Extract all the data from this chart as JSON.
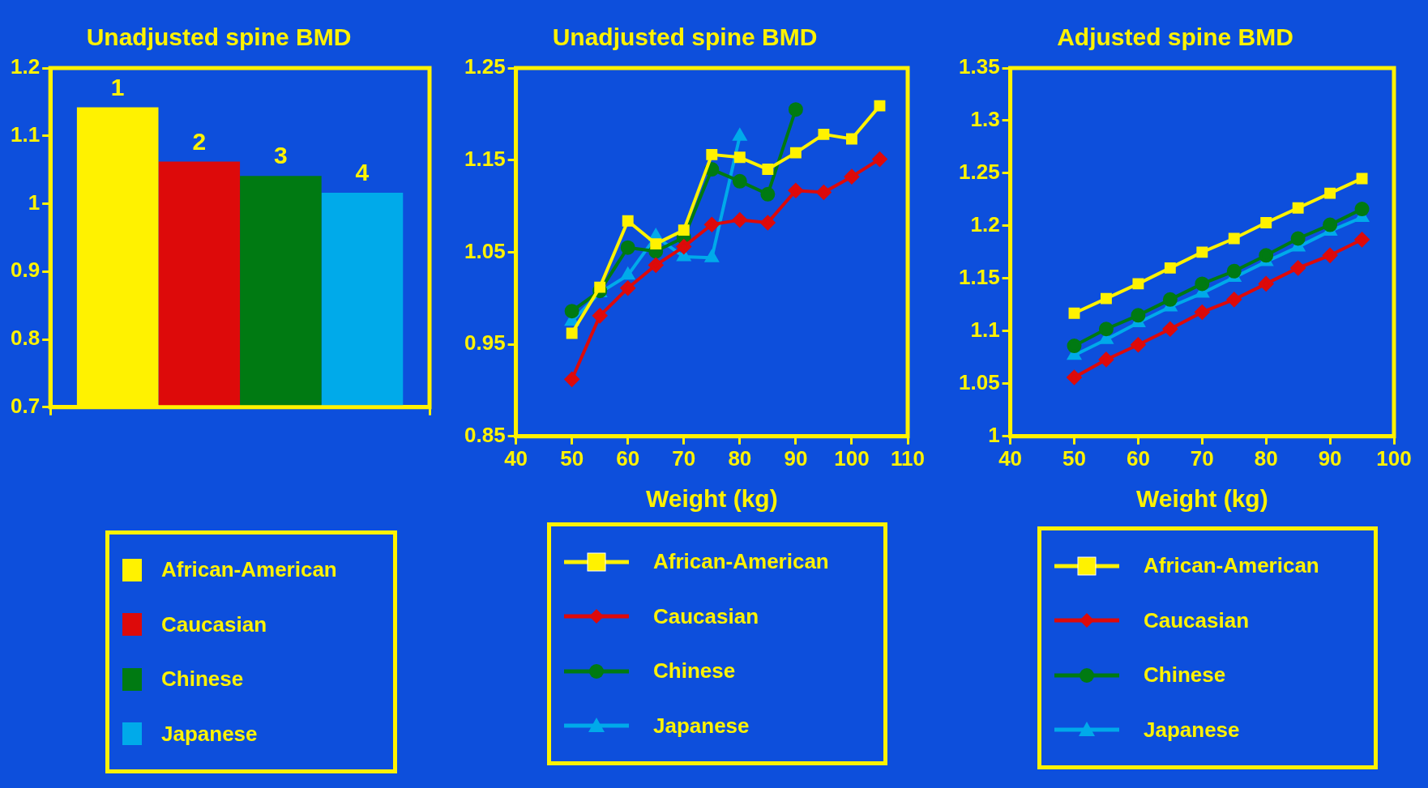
{
  "chart_data": [
    {
      "type": "bar",
      "title": "Unadjusted spine BMD",
      "categories": [
        null
      ],
      "annotations": [
        "1",
        "2",
        "3",
        "4"
      ],
      "ylim": [
        0.7,
        1.2
      ],
      "yticks": [
        0.7,
        0.8,
        0.9,
        1,
        1.1,
        1.2
      ],
      "grid": false,
      "legend": "bottom",
      "series": [
        {
          "name": "African-American",
          "color": "#fff200",
          "values": [
            1.142
          ]
        },
        {
          "name": "Caucasian",
          "color": "#dd0a0a",
          "values": [
            1.062
          ]
        },
        {
          "name": "Chinese",
          "color": "#007a12",
          "values": [
            1.041
          ]
        },
        {
          "name": "Japanese",
          "color": "#00aaea",
          "values": [
            1.016
          ]
        }
      ]
    },
    {
      "type": "line",
      "title": "Unadjusted spine BMD",
      "xlabel": "Weight (kg)",
      "xlim": [
        40,
        110
      ],
      "xticks": [
        40,
        50,
        60,
        70,
        80,
        90,
        100,
        110
      ],
      "ylim": [
        0.85,
        1.25
      ],
      "yticks": [
        0.85,
        0.95,
        1.05,
        1.15,
        1.25
      ],
      "grid": false,
      "legend": "bottom",
      "series": [
        {
          "name": "African-American",
          "color": "#fff200",
          "marker": "square",
          "x": [
            50,
            55,
            60,
            65,
            70,
            75,
            80,
            85,
            90,
            95,
            100,
            105
          ],
          "values": [
            0.962,
            1.012,
            1.084,
            1.059,
            1.074,
            1.156,
            1.153,
            1.14,
            1.158,
            1.178,
            1.173,
            1.209
          ]
        },
        {
          "name": "Caucasian",
          "color": "#dd0a0a",
          "marker": "diamond",
          "x": [
            50,
            55,
            60,
            65,
            70,
            75,
            80,
            85,
            90,
            95,
            100,
            105
          ],
          "values": [
            0.912,
            0.981,
            1.011,
            1.036,
            1.056,
            1.08,
            1.085,
            1.082,
            1.117,
            1.115,
            1.132,
            1.151
          ]
        },
        {
          "name": "Chinese",
          "color": "#007a12",
          "marker": "circle",
          "x": [
            50,
            55,
            60,
            65,
            70,
            75,
            80,
            85,
            90
          ],
          "values": [
            0.986,
            1.008,
            1.055,
            1.051,
            1.066,
            1.14,
            1.127,
            1.113,
            1.205
          ]
        },
        {
          "name": "Japanese",
          "color": "#00aaea",
          "marker": "triangle",
          "x": [
            50,
            55,
            60,
            65,
            70,
            75,
            80
          ],
          "values": [
            0.975,
            1.006,
            1.025,
            1.067,
            1.045,
            1.044,
            1.176
          ]
        }
      ]
    },
    {
      "type": "line",
      "title": "Adjusted spine BMD",
      "xlabel": "Weight (kg)",
      "xlim": [
        40,
        100
      ],
      "xticks": [
        40,
        50,
        60,
        70,
        80,
        90,
        100
      ],
      "ylim": [
        1,
        1.35
      ],
      "yticks": [
        1,
        1.05,
        1.1,
        1.15,
        1.2,
        1.25,
        1.3,
        1.35
      ],
      "grid": false,
      "legend": "bottom",
      "series": [
        {
          "name": "African-American",
          "color": "#fff200",
          "marker": "square",
          "x": [
            50,
            55,
            60,
            65,
            70,
            75,
            80,
            85,
            90,
            95
          ],
          "values": [
            1.117,
            1.131,
            1.145,
            1.16,
            1.175,
            1.188,
            1.203,
            1.217,
            1.231,
            1.245
          ]
        },
        {
          "name": "Caucasian",
          "color": "#dd0a0a",
          "marker": "diamond",
          "x": [
            50,
            55,
            60,
            65,
            70,
            75,
            80,
            85,
            90,
            95
          ],
          "values": [
            1.056,
            1.073,
            1.087,
            1.102,
            1.118,
            1.13,
            1.145,
            1.16,
            1.172,
            1.187
          ]
        },
        {
          "name": "Chinese",
          "color": "#007a12",
          "marker": "circle",
          "x": [
            50,
            55,
            60,
            65,
            70,
            75,
            80,
            85,
            90,
            95
          ],
          "values": [
            1.086,
            1.102,
            1.115,
            1.13,
            1.145,
            1.157,
            1.172,
            1.188,
            1.201,
            1.216
          ]
        },
        {
          "name": "Japanese",
          "color": "#00aaea",
          "marker": "triangle",
          "x": [
            50,
            55,
            60,
            65,
            70,
            75,
            80,
            85,
            90,
            95
          ],
          "values": [
            1.077,
            1.092,
            1.108,
            1.123,
            1.136,
            1.151,
            1.166,
            1.18,
            1.195,
            1.208
          ]
        }
      ]
    }
  ]
}
